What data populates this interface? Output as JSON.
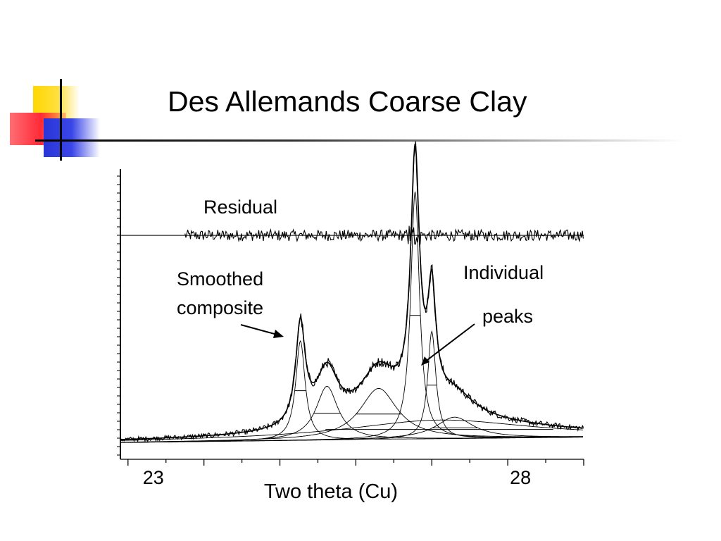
{
  "slide": {
    "title": "Des Allemands Coarse Clay"
  },
  "chart_data": {
    "type": "line",
    "title": "Des Allemands Coarse Clay",
    "xlabel": "Two theta (Cu)",
    "ylabel": "",
    "xlim": [
      22.9,
      29.0
    ],
    "ylim": [
      0,
      100
    ],
    "x_tick_labels": [
      {
        "x": 23,
        "label": "23"
      },
      {
        "x": 28,
        "label": "28"
      }
    ],
    "x_minor_ticks": [
      23,
      23.5,
      24,
      24.5,
      25,
      25.5,
      26,
      26.5,
      27,
      27.5,
      28,
      28.5,
      29
    ],
    "residual_baseline_y": 78.5,
    "baseline": {
      "start": [
        22.9,
        1.5
      ],
      "end": [
        29.0,
        3.5
      ]
    },
    "peaks": [
      {
        "center": 25.27,
        "height": 37,
        "fwhm": 0.15
      },
      {
        "center": 25.62,
        "height": 20,
        "fwhm": 0.35
      },
      {
        "center": 26.3,
        "height": 19,
        "fwhm": 0.6
      },
      {
        "center": 26.78,
        "height": 92,
        "fwhm": 0.14
      },
      {
        "center": 27.0,
        "height": 40,
        "fwhm": 0.13
      },
      {
        "center": 27.3,
        "height": 8,
        "fwhm": 0.6
      },
      {
        "center": 27.1,
        "height": 7,
        "fwhm": 3.0
      }
    ],
    "series": [
      {
        "name": "Residual"
      },
      {
        "name": "Smoothed composite"
      },
      {
        "name": "Individual peaks"
      }
    ],
    "annotations": {
      "residual": "Residual",
      "smoothed_line1": "Smoothed",
      "smoothed_line2": "composite",
      "individual_line1": "Individual",
      "individual_line2": "peaks"
    },
    "grid": false
  }
}
